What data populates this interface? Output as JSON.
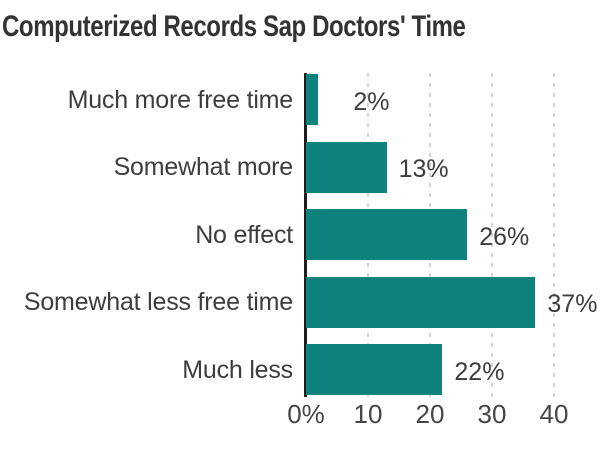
{
  "title": "Computerized Records Sap Doctors' Time",
  "colors": {
    "bar": "#0E837D",
    "title_text": "#333333",
    "label_text": "#3D3D3D",
    "tick_text": "#454545",
    "gridline": "#D4D4D4",
    "axis_line": "#1C1C1C",
    "background": "#FFFFFF"
  },
  "chart_data": {
    "type": "bar",
    "orientation": "horizontal",
    "title": "Computerized Records Sap Doctors' Time",
    "categories": [
      "Much more free time",
      "Somewhat more",
      "No effect",
      "Somewhat less free time",
      "Much less"
    ],
    "values": [
      2,
      13,
      26,
      37,
      22
    ],
    "value_labels": [
      "2%",
      "13%",
      "26%",
      "37%",
      "22%"
    ],
    "xlabel": "",
    "ylabel": "",
    "xlim": [
      0,
      41
    ],
    "x_ticks": [
      0,
      10,
      20,
      30,
      40
    ],
    "x_tick_labels": [
      "0%",
      "10",
      "20",
      "30",
      "40"
    ],
    "grid": "vertical dashed gridlines at 10, 20, 30, 40; solid dark baseline at 0",
    "legend_position": "none"
  }
}
